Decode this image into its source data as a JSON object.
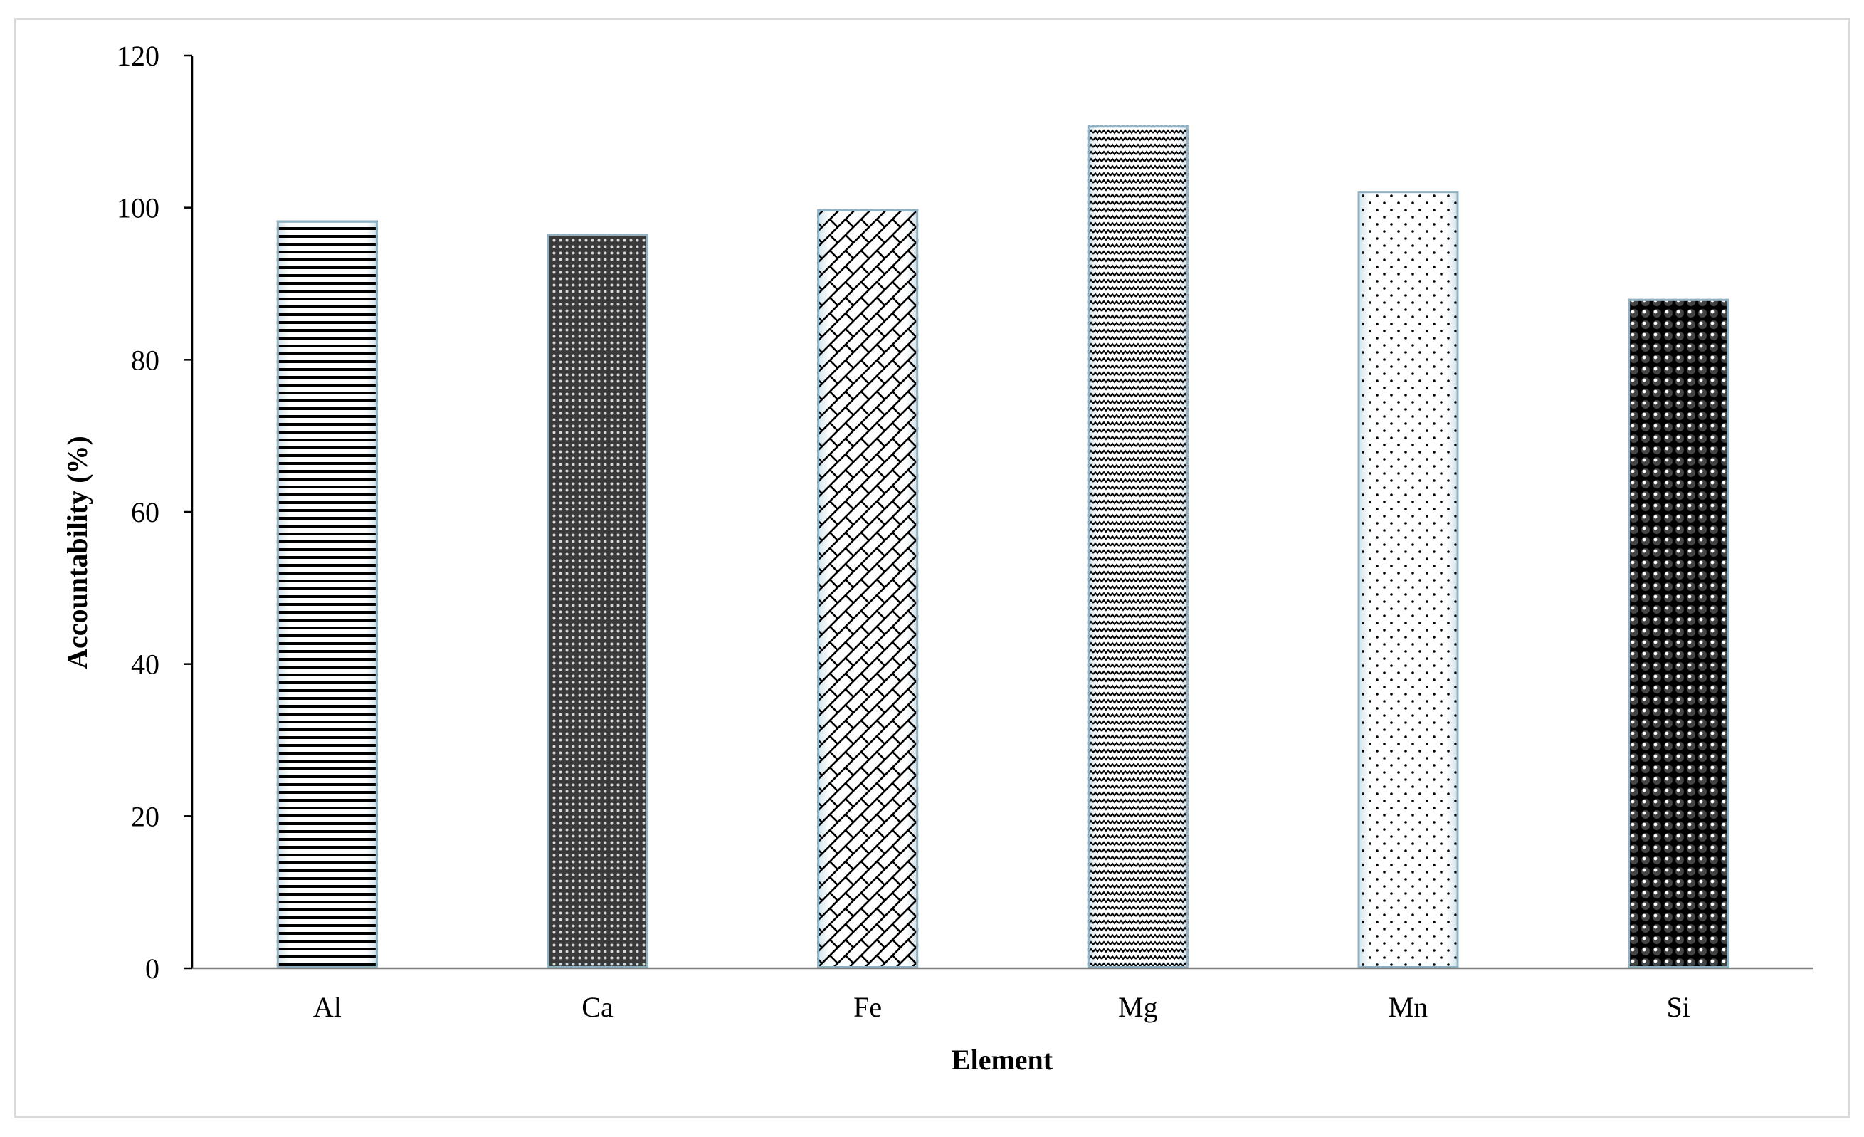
{
  "chart_data": {
    "type": "bar",
    "title": "",
    "xlabel": "Element",
    "ylabel": "Accountability (%)",
    "categories": [
      "Al",
      "Ca",
      "Fe",
      "Mg",
      "Mn",
      "Si"
    ],
    "values": [
      98.3,
      96.6,
      99.8,
      110.8,
      102.2,
      88.0
    ],
    "ylim": [
      0,
      120
    ],
    "yticks": [
      0,
      20,
      40,
      60,
      80,
      100,
      120
    ],
    "grid": false,
    "legend": "none",
    "bar_patterns": [
      "horizontal-lines",
      "dark-mesh",
      "diagonal-lattice",
      "zigzag",
      "sparse-dots",
      "dark-spheres"
    ],
    "colors": {
      "bar_edge": "#8fb3c4",
      "bar_glow": "#cfe0e8",
      "pattern_ink": "#000000",
      "axis": "#000000",
      "frame": "#d9d9d9"
    }
  }
}
